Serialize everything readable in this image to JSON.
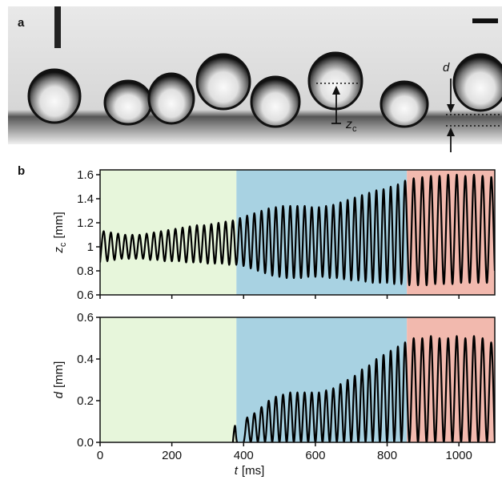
{
  "panel_labels": [
    "a",
    "b"
  ],
  "photo_labels": {
    "d": "d",
    "zc": "z",
    "zc_subscript": "c"
  },
  "chart_data": [
    {
      "type": "line",
      "color": "#000000",
      "ylabel": {
        "symbol": "z",
        "subscript": "c",
        "unit": "[mm]"
      },
      "xlim": [
        0,
        1100
      ],
      "ylim": [
        0.6,
        1.64
      ],
      "xticks": [
        0,
        200,
        400,
        600,
        800,
        1000
      ],
      "xtick_labels": false,
      "yticks": [
        0.6,
        0.8,
        1,
        1.2,
        1.4,
        1.6
      ],
      "regions": [
        {
          "start": 0,
          "end": 380,
          "color": "#e7f6db"
        },
        {
          "start": 380,
          "end": 855,
          "color": "#a8d2e2"
        },
        {
          "start": 855,
          "end": 1100,
          "color": "#f2b9ae"
        }
      ],
      "x": [
        0,
        10,
        20,
        30,
        40,
        50,
        60,
        70,
        80,
        90,
        100,
        110,
        120,
        130,
        140,
        150,
        160,
        170,
        180,
        190,
        200,
        210,
        220,
        230,
        240,
        250,
        260,
        270,
        280,
        290,
        300,
        310,
        320,
        330,
        340,
        350,
        360,
        370,
        380,
        390,
        400,
        410,
        420,
        430,
        440,
        450,
        460,
        470,
        480,
        490,
        500,
        510,
        520,
        530,
        540,
        550,
        560,
        570,
        580,
        590,
        600,
        610,
        620,
        630,
        640,
        650,
        660,
        670,
        680,
        690,
        700,
        710,
        720,
        730,
        740,
        750,
        760,
        770,
        780,
        790,
        800,
        810,
        820,
        830,
        840,
        850,
        862,
        874,
        886,
        898,
        910,
        922,
        934,
        946,
        958,
        970,
        982,
        994,
        1006,
        1018,
        1030,
        1042,
        1054,
        1066,
        1078,
        1090,
        1100
      ],
      "values": [
        0.87,
        1.13,
        0.88,
        1.12,
        0.89,
        1.11,
        0.9,
        1.1,
        0.9,
        1.1,
        0.9,
        1.1,
        0.9,
        1.11,
        0.89,
        1.12,
        0.89,
        1.13,
        0.88,
        1.14,
        0.88,
        1.15,
        0.88,
        1.16,
        0.87,
        1.17,
        0.87,
        1.18,
        0.87,
        1.18,
        0.86,
        1.19,
        0.86,
        1.2,
        0.86,
        1.21,
        0.85,
        1.22,
        0.85,
        1.24,
        0.84,
        1.26,
        0.82,
        1.28,
        0.8,
        1.3,
        0.78,
        1.32,
        0.76,
        1.33,
        0.75,
        1.34,
        0.74,
        1.34,
        0.74,
        1.34,
        0.74,
        1.34,
        0.75,
        1.33,
        0.75,
        1.33,
        0.75,
        1.34,
        0.74,
        1.35,
        0.74,
        1.37,
        0.73,
        1.39,
        0.72,
        1.41,
        0.72,
        1.43,
        0.71,
        1.45,
        0.7,
        1.47,
        0.7,
        1.48,
        0.7,
        1.5,
        0.69,
        1.52,
        0.69,
        1.55,
        0.68,
        1.57,
        0.68,
        1.58,
        0.68,
        1.59,
        0.69,
        1.59,
        0.69,
        1.6,
        0.69,
        1.6,
        0.7,
        1.59,
        0.7,
        1.6,
        0.7,
        1.59,
        0.7,
        1.58,
        0.8
      ]
    },
    {
      "type": "line",
      "color": "#000000",
      "ylabel": {
        "symbol": "d",
        "unit": "[mm]"
      },
      "xlabel": {
        "symbol": "t",
        "unit": "[ms]"
      },
      "xlim": [
        0,
        1100
      ],
      "ylim": [
        0,
        0.6
      ],
      "xticks": [
        0,
        200,
        400,
        600,
        800,
        1000
      ],
      "xtick_labels": true,
      "yticks": [
        {
          "value": 0,
          "label": "0.0"
        },
        0.2,
        0.4,
        0.6
      ],
      "regions": [
        {
          "start": 0,
          "end": 380,
          "color": "#e7f6db"
        },
        {
          "start": 380,
          "end": 855,
          "color": "#a8d2e2"
        },
        {
          "start": 855,
          "end": 1100,
          "color": "#f2b9ae"
        }
      ],
      "x": [
        370,
        376,
        382,
        400,
        410,
        420,
        430,
        440,
        450,
        460,
        470,
        480,
        490,
        500,
        510,
        520,
        530,
        540,
        550,
        560,
        570,
        580,
        590,
        600,
        610,
        620,
        630,
        640,
        650,
        660,
        670,
        680,
        690,
        700,
        710,
        720,
        730,
        740,
        750,
        760,
        770,
        780,
        790,
        800,
        810,
        820,
        830,
        840,
        850,
        862,
        874,
        886,
        898,
        910,
        922,
        934,
        946,
        958,
        970,
        982,
        994,
        1006,
        1018,
        1030,
        1042,
        1054,
        1066,
        1078,
        1090,
        1100
      ],
      "values": [
        0,
        0.08,
        0,
        0,
        0.12,
        0,
        0.14,
        0,
        0.17,
        0,
        0.2,
        0,
        0.22,
        0,
        0.23,
        0,
        0.24,
        0,
        0.24,
        0,
        0.24,
        0,
        0.24,
        0,
        0.24,
        0,
        0.25,
        0,
        0.26,
        0,
        0.28,
        0,
        0.3,
        0,
        0.32,
        0,
        0.35,
        0,
        0.37,
        0,
        0.4,
        0,
        0.42,
        0,
        0.44,
        0,
        0.46,
        0,
        0.48,
        0,
        0.5,
        0,
        0.5,
        0,
        0.51,
        0,
        0.5,
        0,
        0.5,
        0,
        0.51,
        0,
        0.5,
        0,
        0.51,
        0,
        0.5,
        0,
        0.48,
        0
      ]
    }
  ]
}
